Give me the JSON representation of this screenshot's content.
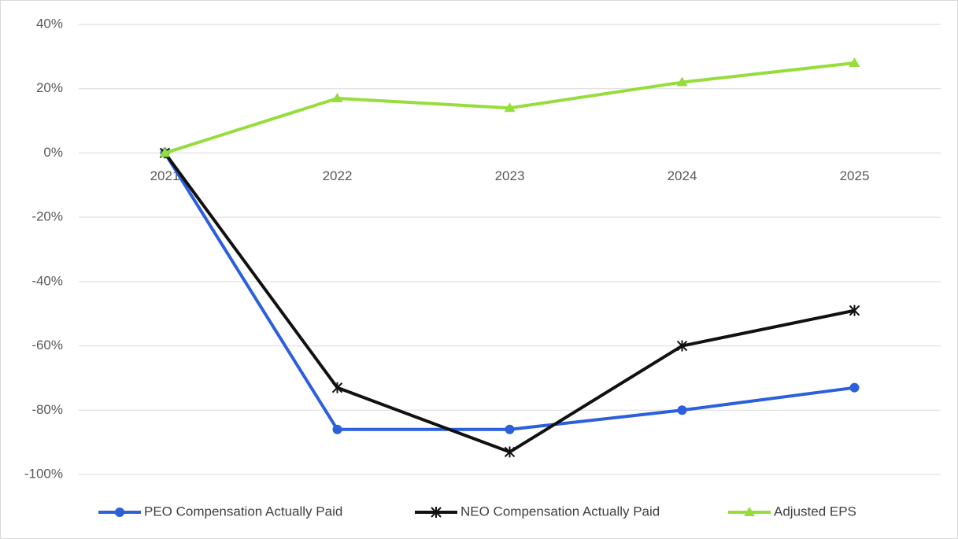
{
  "chart_data": {
    "type": "line",
    "categories": [
      "2021",
      "2022",
      "2023",
      "2024",
      "2025"
    ],
    "series": [
      {
        "name": "PEO Compensation Actually Paid",
        "color": "#2b5fdb",
        "marker": "circle",
        "values": [
          0,
          -86,
          -86,
          -80,
          -73
        ]
      },
      {
        "name": "NEO Compensation Actually Paid",
        "color": "#111111",
        "marker": "star",
        "values": [
          0,
          -73,
          -93,
          -60,
          -49
        ]
      },
      {
        "name": "Adjusted EPS",
        "color": "#96dd3c",
        "marker": "triangle",
        "values": [
          0,
          17,
          14,
          22,
          28
        ]
      }
    ],
    "ylim": [
      -100,
      40
    ],
    "yticks": [
      {
        "value": -100,
        "label": "-100%"
      },
      {
        "value": -80,
        "label": "-80%"
      },
      {
        "value": -60,
        "label": "-60%"
      },
      {
        "value": -40,
        "label": "-40%"
      },
      {
        "value": -20,
        "label": "-20%"
      },
      {
        "value": 0,
        "label": "0%"
      },
      {
        "value": 20,
        "label": "20%"
      },
      {
        "value": 40,
        "label": "40%"
      }
    ],
    "grid": true,
    "legend": "bottom"
  }
}
